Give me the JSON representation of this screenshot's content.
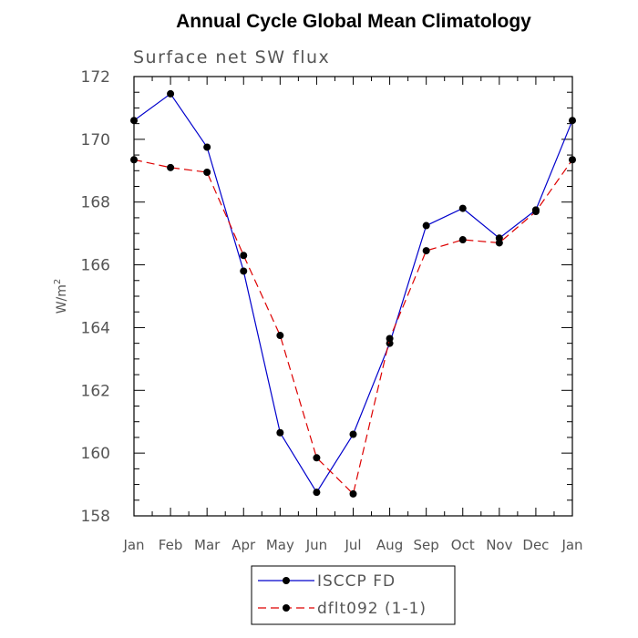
{
  "chart_data": {
    "type": "line",
    "title": "Annual Cycle Global Mean Climatology",
    "subtitle": "Surface net SW flux",
    "ylabel": "W/m",
    "ylabel_sup": "2",
    "xlabel": "",
    "categories": [
      "Jan",
      "Feb",
      "Mar",
      "Apr",
      "May",
      "Jun",
      "Jul",
      "Aug",
      "Sep",
      "Oct",
      "Nov",
      "Dec",
      "Jan"
    ],
    "ylim": [
      158,
      172
    ],
    "yticks": [
      158,
      160,
      162,
      164,
      166,
      168,
      170,
      172
    ],
    "ytick_labels": [
      "158",
      "160",
      "162",
      "164",
      "166",
      "168",
      "170",
      "172"
    ],
    "series": [
      {
        "name": "ISCCP FD",
        "color": "#0000cc",
        "dash": "solid",
        "marker": "circle",
        "values": [
          170.6,
          171.45,
          169.75,
          165.8,
          160.65,
          158.75,
          160.6,
          163.5,
          167.25,
          167.8,
          166.85,
          167.75,
          170.6
        ]
      },
      {
        "name": "dflt092 (1-1)",
        "color": "#dd0000",
        "dash": "dashed",
        "marker": "circle",
        "values": [
          169.35,
          169.1,
          168.95,
          166.3,
          163.75,
          159.85,
          158.7,
          163.65,
          166.45,
          166.8,
          166.7,
          167.7,
          169.35
        ]
      }
    ],
    "grid": false,
    "legend": "bottom-center"
  }
}
